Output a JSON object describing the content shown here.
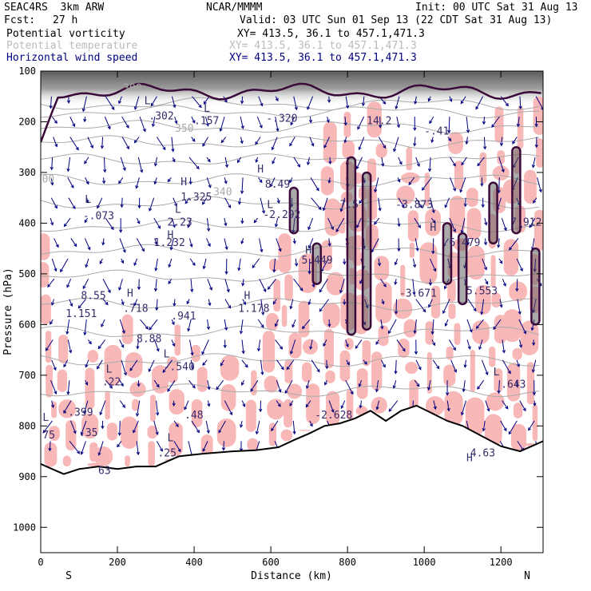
{
  "header": {
    "model": "SEAC4RS  3km ARW",
    "org": "NCAR/MMMM",
    "init": "Init: 00 UTC Sat 31 Aug 13",
    "fcst_label": "Fcst:",
    "fcst_value": "27 h",
    "valid": "Valid: 03 UTC Sun 01 Sep 13 (22 CDT Sat 31 Aug 13)",
    "fields": [
      {
        "name": "Potential vorticity",
        "xy": "XY= 413.5, 36.1 to 457.1,471.3",
        "color": "#000000"
      },
      {
        "name": "Potential temperature",
        "xy": "XY= 413.5, 36.1 to 457.1,471.3",
        "color": "#bbbbbb"
      },
      {
        "name": "Horizontal wind speed",
        "xy": "XY= 413.5, 36.1 to 457.1,471.3",
        "color": "#000080"
      }
    ]
  },
  "chart_data": {
    "type": "cross-section",
    "xlabel": "Distance (km)",
    "ylabel": "Pressure (hPa)",
    "xlim": [
      0,
      1310
    ],
    "ylim": [
      1050,
      100
    ],
    "xticks": [
      "0",
      "200",
      "400",
      "600",
      "800",
      "1000",
      "1200"
    ],
    "yticks": [
      "100",
      "200",
      "300",
      "400",
      "500",
      "600",
      "700",
      "800",
      "900",
      "1000"
    ],
    "left_end": "S",
    "right_end": "N",
    "colors": {
      "pv_shade": "#f8b8b8",
      "theta": "#aaaaaa",
      "wind": "#000080",
      "pv_contour": "#3a0a3a",
      "terrain": "#000000"
    },
    "terrain": [
      [
        0,
        875
      ],
      [
        30,
        885
      ],
      [
        60,
        895
      ],
      [
        100,
        885
      ],
      [
        150,
        880
      ],
      [
        200,
        885
      ],
      [
        250,
        880
      ],
      [
        300,
        880
      ],
      [
        330,
        870
      ],
      [
        360,
        860
      ],
      [
        420,
        855
      ],
      [
        500,
        850
      ],
      [
        560,
        848
      ],
      [
        620,
        842
      ],
      [
        660,
        828
      ],
      [
        700,
        815
      ],
      [
        740,
        800
      ],
      [
        780,
        795
      ],
      [
        820,
        785
      ],
      [
        860,
        770
      ],
      [
        900,
        790
      ],
      [
        940,
        770
      ],
      [
        980,
        760
      ],
      [
        1020,
        775
      ],
      [
        1060,
        790
      ],
      [
        1100,
        800
      ],
      [
        1150,
        820
      ],
      [
        1200,
        840
      ],
      [
        1250,
        850
      ],
      [
        1310,
        830
      ]
    ],
    "theta_levels_hPa": [
      165,
      180,
      210,
      240,
      275,
      315,
      360,
      405,
      455,
      505,
      560,
      615,
      670,
      730
    ],
    "labels": [
      {
        "t": ".302",
        "x": 282,
        "p": 195,
        "c": "pv"
      },
      {
        "t": ".157",
        "x": 400,
        "p": 205,
        "c": "pv"
      },
      {
        "t": "-.320",
        "x": 588,
        "p": 200,
        "c": "pv"
      },
      {
        "t": "14.2",
        "x": 850,
        "p": 205,
        "c": "pv"
      },
      {
        "t": "-.41",
        "x": 1000,
        "p": 225,
        "c": "pv"
      },
      {
        "t": "8.49",
        "x": 585,
        "p": 330,
        "c": "pv"
      },
      {
        "t": "1.325",
        "x": 365,
        "p": 355,
        "c": "pv"
      },
      {
        "t": "-.073",
        "x": 110,
        "p": 392,
        "c": "pv"
      },
      {
        "t": "2.23",
        "x": 330,
        "p": 405,
        "c": "pv"
      },
      {
        "t": "1.232",
        "x": 295,
        "p": 445,
        "c": "pv"
      },
      {
        "t": "-2.292",
        "x": 580,
        "p": 390,
        "c": "pv"
      },
      {
        "t": "7.5",
        "x": 780,
        "p": 370,
        "c": "pv"
      },
      {
        "t": "-3.873",
        "x": 925,
        "p": 370,
        "c": "pv"
      },
      {
        "t": "7.912",
        "x": 1225,
        "p": 405,
        "c": "pv"
      },
      {
        "t": "6.479",
        "x": 1065,
        "p": 445,
        "c": "pv"
      },
      {
        "t": "5.449",
        "x": 680,
        "p": 480,
        "c": "pv"
      },
      {
        "t": "5.553",
        "x": 1110,
        "p": 540,
        "c": "pv"
      },
      {
        "t": "-3.671",
        "x": 935,
        "p": 545,
        "c": "pv"
      },
      {
        "t": "8.55",
        "x": 105,
        "p": 550,
        "c": "pv"
      },
      {
        "t": "1.151",
        "x": 65,
        "p": 585,
        "c": "pv"
      },
      {
        "t": ".718",
        "x": 215,
        "p": 575,
        "c": "pv"
      },
      {
        "t": ".941",
        "x": 340,
        "p": 590,
        "c": "pv"
      },
      {
        "t": "1.178",
        "x": 515,
        "p": 575,
        "c": "pv"
      },
      {
        "t": "8.88",
        "x": 250,
        "p": 635,
        "c": "pv"
      },
      {
        "t": "-.540",
        "x": 320,
        "p": 690,
        "c": "pv"
      },
      {
        "t": ".22",
        "x": 160,
        "p": 720,
        "c": "pv"
      },
      {
        "t": "-.399",
        "x": 55,
        "p": 780,
        "c": "pv"
      },
      {
        "t": ".48",
        "x": 375,
        "p": 785,
        "c": "pv"
      },
      {
        "t": "-2.628",
        "x": 715,
        "p": 785,
        "c": "pv"
      },
      {
        "t": ".35",
        "x": 100,
        "p": 820,
        "c": "pv"
      },
      {
        "t": ".25",
        "x": 305,
        "p": 860,
        "c": "pv"
      },
      {
        "t": "75",
        "x": 5,
        "p": 825,
        "c": "pv"
      },
      {
        "t": "4.63",
        "x": 1120,
        "p": 860,
        "c": "pv"
      },
      {
        "t": ".643",
        "x": 1200,
        "p": 725,
        "c": "pv"
      },
      {
        "t": "63",
        "x": 150,
        "p": 895,
        "c": "pv"
      },
      {
        "t": "350",
        "x": 350,
        "p": 220,
        "c": "th"
      },
      {
        "t": "300",
        "x": 215,
        "p": 140,
        "c": "th"
      },
      {
        "t": "340",
        "x": 450,
        "p": 345,
        "c": "th"
      },
      {
        "t": "00",
        "x": 3,
        "p": 320,
        "c": "th"
      },
      {
        "t": "H",
        "x": 365,
        "p": 325,
        "c": "hl"
      },
      {
        "t": "H",
        "x": 565,
        "p": 300,
        "c": "hl"
      },
      {
        "t": "H",
        "x": 330,
        "p": 430,
        "c": "hl"
      },
      {
        "t": "H",
        "x": 690,
        "p": 460,
        "c": "hl"
      },
      {
        "t": "H",
        "x": 1015,
        "p": 415,
        "c": "hl"
      },
      {
        "t": "H",
        "x": 225,
        "p": 545,
        "c": "hl"
      },
      {
        "t": "H",
        "x": 530,
        "p": 550,
        "c": "hl"
      },
      {
        "t": "H",
        "x": 1110,
        "p": 870,
        "c": "hl"
      },
      {
        "t": "L",
        "x": 115,
        "p": 360,
        "c": "hl"
      },
      {
        "t": "L",
        "x": 350,
        "p": 380,
        "c": "hl"
      },
      {
        "t": "L",
        "x": 590,
        "p": 370,
        "c": "hl"
      },
      {
        "t": "L",
        "x": 270,
        "p": 165,
        "c": "hl"
      },
      {
        "t": "L",
        "x": 425,
        "p": 180,
        "c": "hl"
      },
      {
        "t": "L",
        "x": 170,
        "p": 695,
        "c": "hl"
      },
      {
        "t": "L",
        "x": 320,
        "p": 665,
        "c": "hl"
      },
      {
        "t": "L",
        "x": 5,
        "p": 790,
        "c": "hl"
      },
      {
        "t": "L",
        "x": 330,
        "p": 830,
        "c": "hl"
      },
      {
        "t": "L",
        "x": 1180,
        "p": 700,
        "c": "hl"
      }
    ]
  }
}
